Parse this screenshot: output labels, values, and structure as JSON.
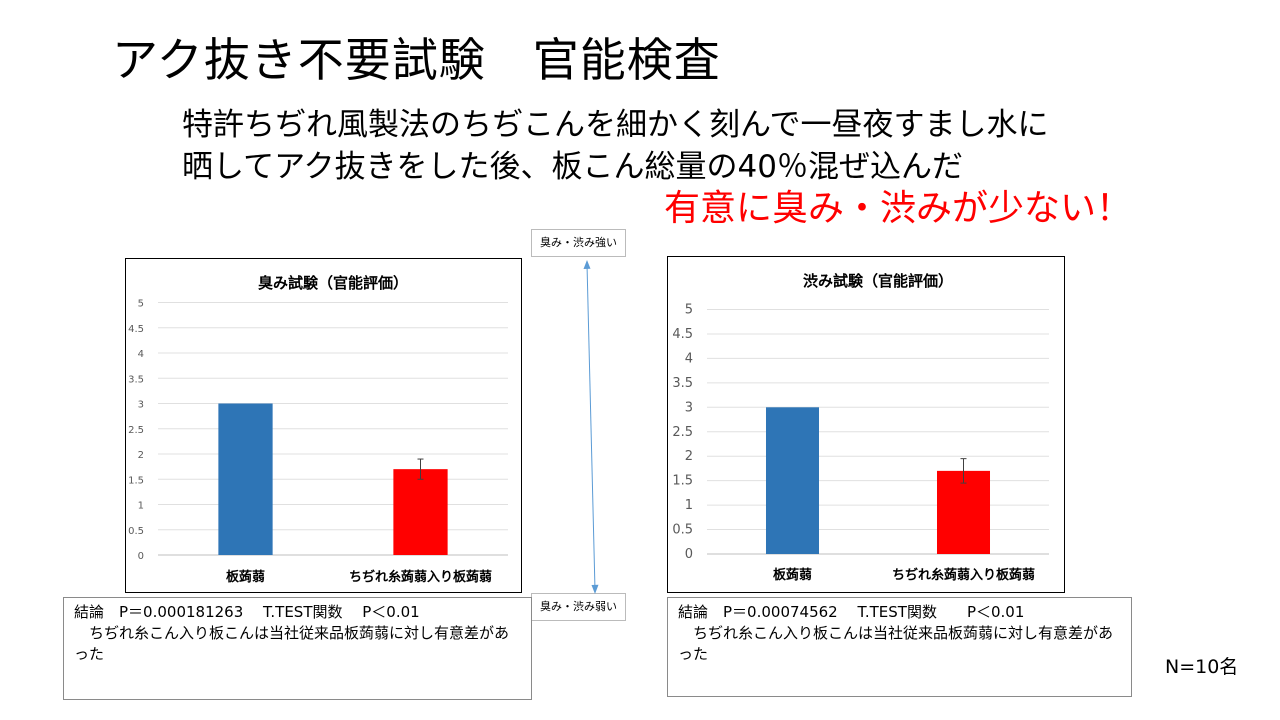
{
  "slide": {
    "title": "アク抜き不要試験　官能検査",
    "subtitle_line1": "特許ちぢれ風製法のちぢこんを細かく刻んで一昼夜すまし水に",
    "subtitle_line2": "晒してアク抜きをした後、板こん総量の40％混ぜ込んだ",
    "highlight": "有意に臭み・渋みが少ない！",
    "scale_top": "臭み・渋み強い",
    "scale_bottom": "臭み・渋み弱い",
    "n_label": "N=10名"
  },
  "notes": [
    {
      "line1": "結論　P＝0.000181263　 T.TEST関数　 P＜0.01",
      "line2": "　ちぢれ糸こん入り板こんは当社従来品板蒟蒻に対し有意差があった"
    },
    {
      "line1": "結論　P＝0.00074562　 T.TEST関数　　P＜0.01",
      "line2": "　ちぢれ糸こん入り板こんは当社従来品板蒟蒻に対し有意差があった"
    }
  ],
  "chart_data": [
    {
      "type": "bar",
      "title": "臭み試験（官能評価）",
      "categories": [
        "板蒟蒻",
        "ちぢれ糸蒟蒻入り板蒟蒻"
      ],
      "values": [
        3,
        1.7
      ],
      "error": [
        0,
        0.2
      ],
      "bar_colors": [
        "#2e75b6",
        "#ff0000"
      ],
      "ylim": [
        0,
        5
      ],
      "yticks": [
        "0",
        "0.5",
        "1",
        "1.5",
        "2",
        "2.5",
        "3",
        "3.5",
        "4",
        "4.5",
        "5"
      ],
      "grid": true
    },
    {
      "type": "bar",
      "title": "渋み試験（官能評価）",
      "categories": [
        "板蒟蒻",
        "ちぢれ糸蒟蒻入り板蒟蒻"
      ],
      "values": [
        3,
        1.7
      ],
      "error": [
        0,
        0.25
      ],
      "bar_colors": [
        "#2e75b6",
        "#ff0000"
      ],
      "ylim": [
        0,
        5
      ],
      "yticks": [
        "0",
        "0.5",
        "1",
        "1.5",
        "2",
        "2.5",
        "3",
        "3.5",
        "4",
        "4.5",
        "5"
      ],
      "grid": true
    }
  ]
}
